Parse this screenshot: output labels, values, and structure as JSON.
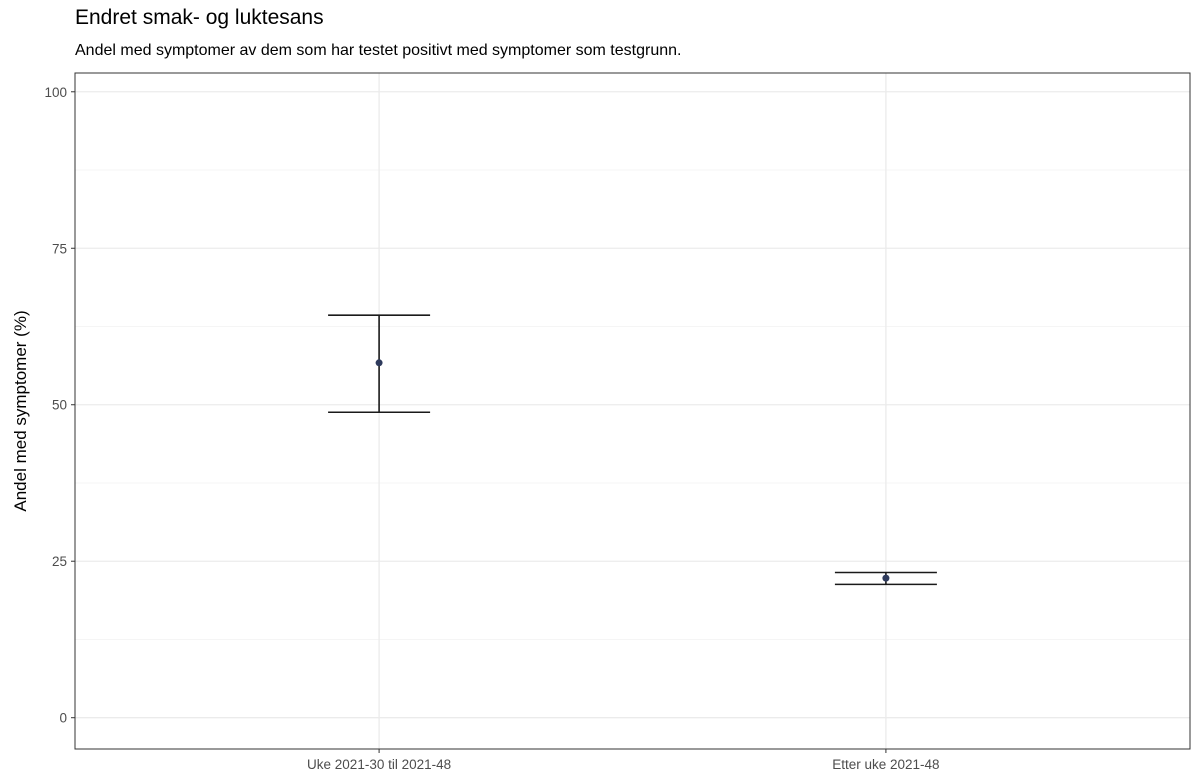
{
  "chart_data": {
    "type": "errorbar",
    "title": "Endret smak- og luktesans",
    "subtitle": "Andel med symptomer av dem som har testet positivt med symptomer som testgrunn.",
    "xlabel": "",
    "ylabel": "Andel med symptomer (%)",
    "ylim": [
      -5,
      103
    ],
    "yticks": [
      0,
      25,
      50,
      75,
      100
    ],
    "grid": true,
    "legend": "none",
    "categories": [
      "Uke 2021-30 til 2021-48",
      "Etter uke 2021-48"
    ],
    "series": [
      {
        "values": [
          56.7,
          22.3
        ],
        "lower": [
          48.8,
          21.3
        ],
        "upper": [
          64.3,
          23.2
        ]
      }
    ],
    "colors": {
      "point": "#2e3a5c",
      "errorbar": "#1a1a1a",
      "grid_major": "#ebebeb",
      "grid_minor": "#f5f5f5",
      "panel_border": "#333333"
    }
  }
}
